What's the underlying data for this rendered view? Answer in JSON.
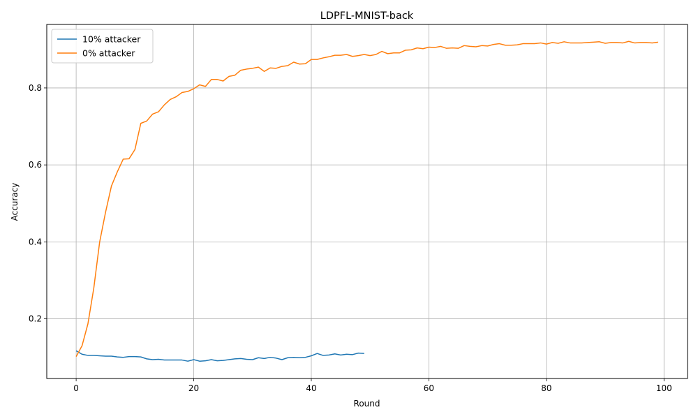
{
  "chart_data": {
    "type": "line",
    "title": "LDPFL-MNIST-back",
    "xlabel": "Round",
    "ylabel": "Accuracy",
    "xlim": [
      -5,
      104
    ],
    "ylim": [
      0.045,
      0.965
    ],
    "xticks": [
      0,
      20,
      40,
      60,
      80,
      100
    ],
    "yticks": [
      0.2,
      0.4,
      0.6,
      0.8
    ],
    "xtick_labels": [
      "0",
      "20",
      "40",
      "60",
      "80",
      "100"
    ],
    "ytick_labels": [
      "0.2",
      "0.4",
      "0.6",
      "0.8"
    ],
    "grid": true,
    "legend_position": "top-left",
    "series": [
      {
        "name": "10% attacker",
        "color": "#1f77b4",
        "x": [
          0,
          1,
          2,
          3,
          4,
          5,
          6,
          7,
          8,
          9,
          10,
          11,
          12,
          13,
          14,
          15,
          16,
          17,
          18,
          19,
          20,
          21,
          22,
          23,
          24,
          25,
          26,
          27,
          28,
          29,
          30,
          31,
          32,
          33,
          34,
          35,
          36,
          37,
          38,
          39,
          40,
          41,
          42,
          43,
          44,
          45,
          46,
          47,
          48,
          49
        ],
        "y": [
          0.117,
          0.108,
          0.105,
          0.105,
          0.104,
          0.103,
          0.103,
          0.101,
          0.1,
          0.102,
          0.102,
          0.101,
          0.096,
          0.094,
          0.095,
          0.093,
          0.093,
          0.093,
          0.093,
          0.09,
          0.094,
          0.09,
          0.091,
          0.094,
          0.091,
          0.092,
          0.094,
          0.096,
          0.097,
          0.095,
          0.094,
          0.099,
          0.097,
          0.1,
          0.098,
          0.094,
          0.099,
          0.1,
          0.099,
          0.1,
          0.104,
          0.11,
          0.105,
          0.106,
          0.109,
          0.106,
          0.108,
          0.107,
          0.111,
          0.11
        ]
      },
      {
        "name": "0% attacker",
        "color": "#ff7f0e",
        "x": [
          0,
          1,
          2,
          3,
          4,
          5,
          6,
          7,
          8,
          9,
          10,
          11,
          12,
          13,
          14,
          15,
          16,
          17,
          18,
          19,
          20,
          21,
          22,
          23,
          24,
          25,
          26,
          27,
          28,
          29,
          30,
          31,
          32,
          33,
          34,
          35,
          36,
          37,
          38,
          39,
          40,
          41,
          42,
          43,
          44,
          45,
          46,
          47,
          48,
          49,
          50,
          51,
          52,
          53,
          54,
          55,
          56,
          57,
          58,
          59,
          60,
          61,
          62,
          63,
          64,
          65,
          66,
          67,
          68,
          69,
          70,
          71,
          72,
          73,
          74,
          75,
          76,
          77,
          78,
          79,
          80,
          81,
          82,
          83,
          84,
          85,
          86,
          87,
          88,
          89,
          90,
          91,
          92,
          93,
          94,
          95,
          96,
          97,
          98,
          99
        ],
        "y": [
          0.102,
          0.13,
          0.187,
          0.28,
          0.4,
          0.477,
          0.545,
          0.582,
          0.615,
          0.616,
          0.64,
          0.708,
          0.714,
          0.732,
          0.738,
          0.756,
          0.77,
          0.777,
          0.788,
          0.791,
          0.798,
          0.808,
          0.804,
          0.822,
          0.822,
          0.818,
          0.83,
          0.833,
          0.846,
          0.849,
          0.851,
          0.854,
          0.843,
          0.852,
          0.851,
          0.856,
          0.858,
          0.867,
          0.862,
          0.863,
          0.874,
          0.874,
          0.878,
          0.881,
          0.885,
          0.885,
          0.887,
          0.882,
          0.884,
          0.887,
          0.884,
          0.887,
          0.895,
          0.889,
          0.891,
          0.891,
          0.898,
          0.899,
          0.904,
          0.902,
          0.906,
          0.905,
          0.908,
          0.903,
          0.904,
          0.903,
          0.91,
          0.908,
          0.907,
          0.91,
          0.909,
          0.913,
          0.915,
          0.911,
          0.911,
          0.912,
          0.915,
          0.915,
          0.915,
          0.917,
          0.914,
          0.918,
          0.916,
          0.92,
          0.917,
          0.917,
          0.917,
          0.918,
          0.919,
          0.92,
          0.916,
          0.918,
          0.918,
          0.917,
          0.921,
          0.917,
          0.918,
          0.918,
          0.917,
          0.919
        ]
      }
    ]
  }
}
